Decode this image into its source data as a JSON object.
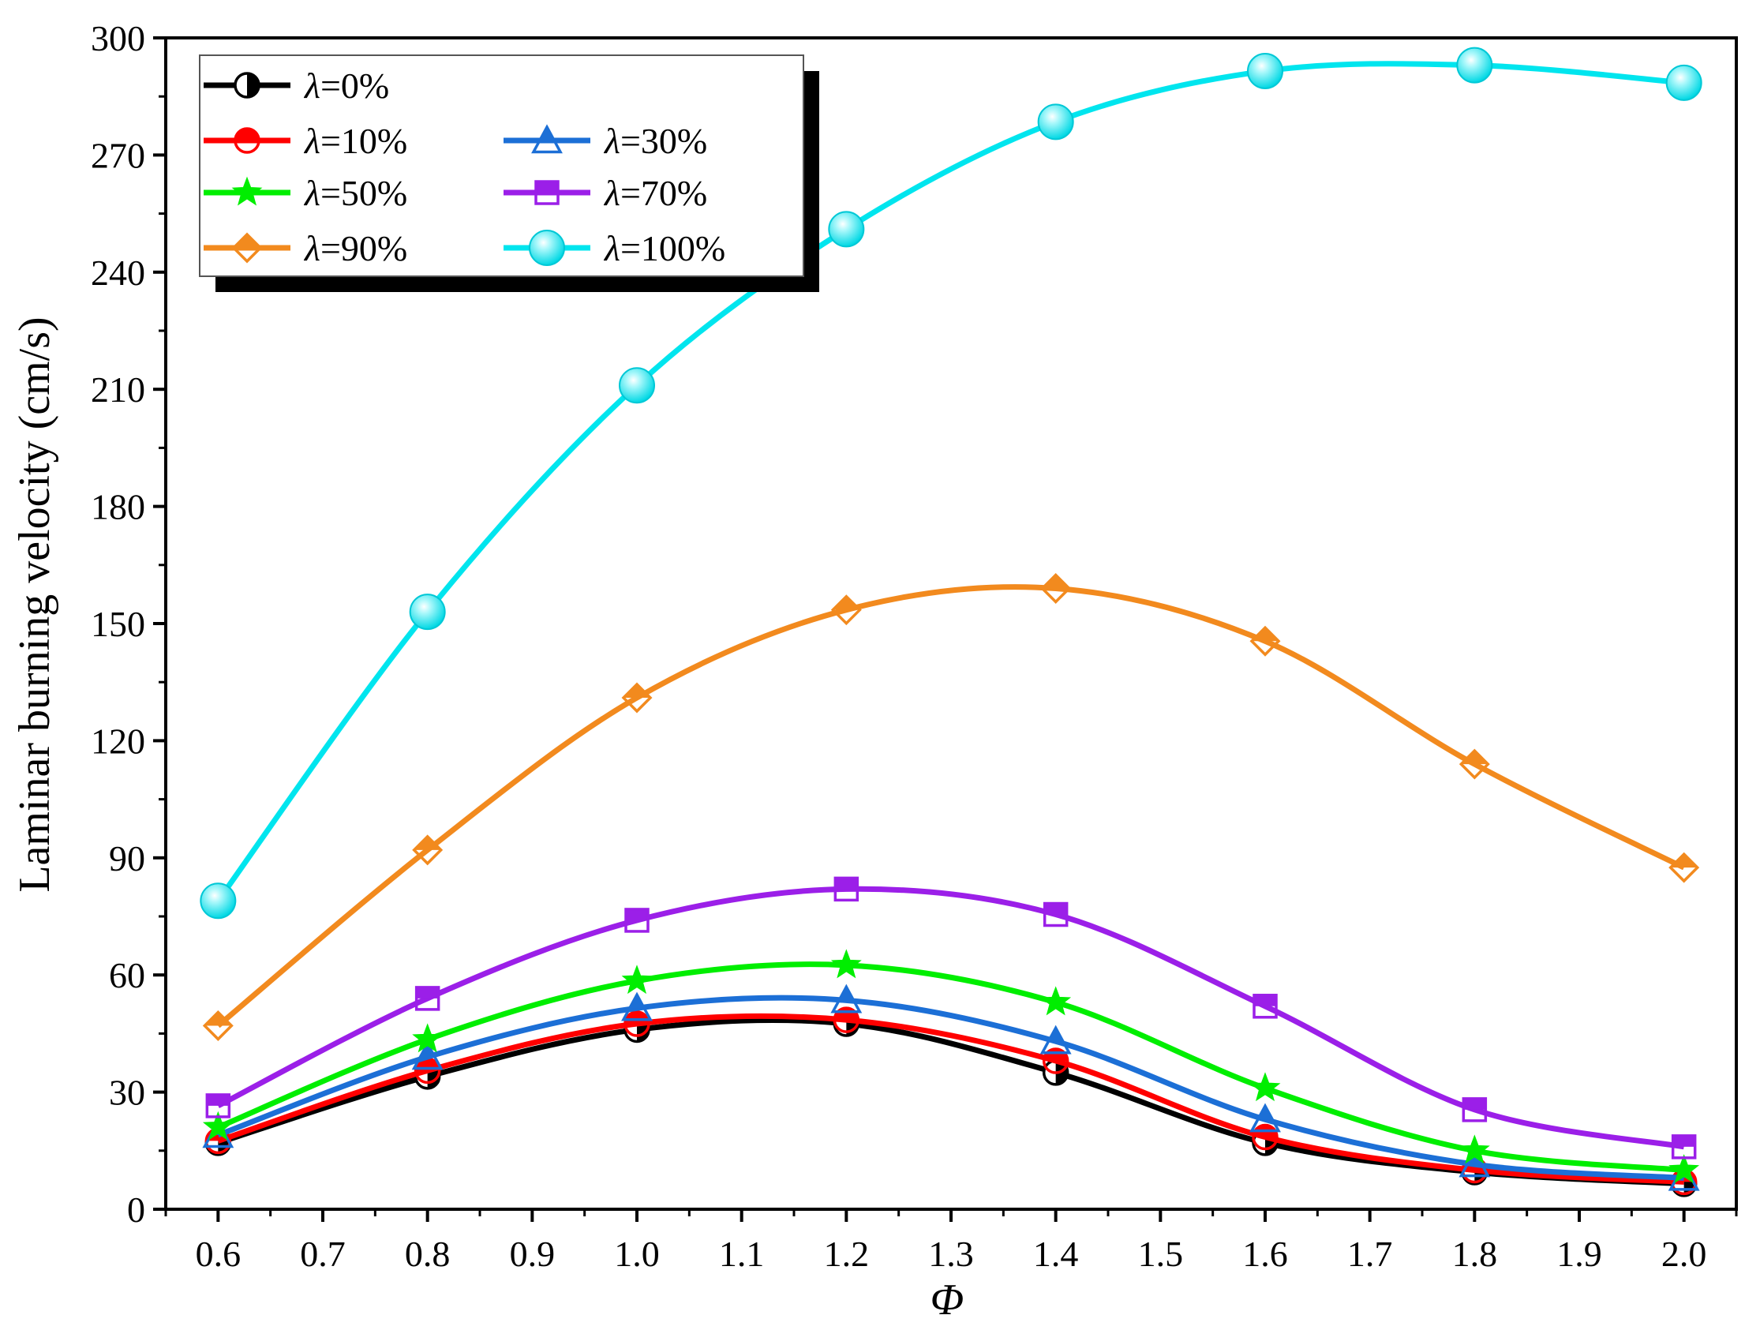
{
  "chart_data": {
    "type": "line",
    "title": "",
    "xlabel": "Φ",
    "ylabel": "Laminar burning velocity (cm/s)",
    "xlim": [
      0.55,
      2.05
    ],
    "ylim": [
      0,
      300
    ],
    "xticks": [
      "0.6",
      "0.7",
      "0.8",
      "0.9",
      "1.0",
      "1.1",
      "1.2",
      "1.3",
      "1.4",
      "1.5",
      "1.6",
      "1.7",
      "1.8",
      "1.9",
      "2.0"
    ],
    "yticks": [
      "0",
      "30",
      "60",
      "90",
      "120",
      "150",
      "180",
      "210",
      "240",
      "270",
      "300"
    ],
    "x": [
      0.6,
      0.8,
      1.0,
      1.2,
      1.4,
      1.6,
      1.8,
      2.0
    ],
    "legend_position": "top-left",
    "series": [
      {
        "name": "λ=0%",
        "prefix": "λ",
        "suffix": "=0%",
        "color": "#000000",
        "marker": "half-circle",
        "values": [
          17,
          34,
          46,
          47.5,
          35,
          17,
          9.5,
          6.5
        ]
      },
      {
        "name": "λ=10%",
        "prefix": "λ",
        "suffix": "=10%",
        "color": "#ff0000",
        "marker": "circle",
        "values": [
          17.5,
          35.5,
          47.5,
          48.5,
          38,
          18.5,
          10,
          7
        ]
      },
      {
        "name": "λ=30%",
        "prefix": "λ",
        "suffix": "=30%",
        "color": "#1c6fd6",
        "marker": "triangle",
        "values": [
          19,
          39,
          51.5,
          53.5,
          43,
          23,
          11.5,
          8
        ]
      },
      {
        "name": "λ=50%",
        "prefix": "λ",
        "suffix": "=50%",
        "color": "#00ee00",
        "marker": "star",
        "values": [
          21,
          43.5,
          58.5,
          62.5,
          53,
          31,
          15,
          10
        ]
      },
      {
        "name": "λ=70%",
        "prefix": "λ",
        "suffix": "=70%",
        "color": "#9b1fe8",
        "marker": "square",
        "values": [
          26.5,
          54,
          74,
          82,
          75.5,
          52,
          25.5,
          16
        ]
      },
      {
        "name": "λ=90%",
        "prefix": "λ",
        "suffix": "=90%",
        "color": "#f28a1e",
        "marker": "diamond",
        "values": [
          47,
          92,
          131,
          153.5,
          159,
          145.5,
          114,
          87.5
        ]
      },
      {
        "name": "λ=100%",
        "prefix": "λ",
        "suffix": "=100%",
        "color": "#00e5ee",
        "marker": "sphere",
        "values": [
          79,
          153,
          211,
          251,
          278.5,
          291.5,
          293,
          288.5
        ]
      }
    ]
  }
}
